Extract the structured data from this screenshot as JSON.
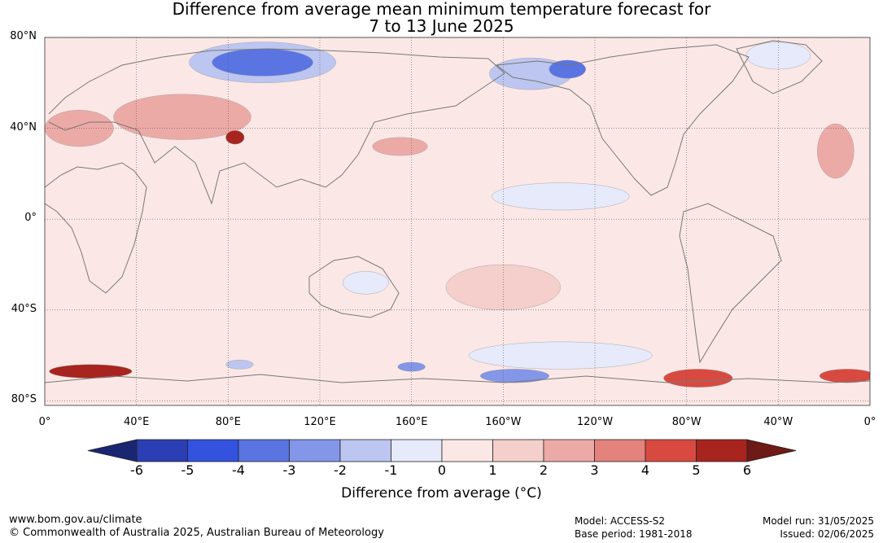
{
  "title": {
    "line1": "Difference from average mean minimum temperature forecast for",
    "line2": "7 to 13 June 2025"
  },
  "axes": {
    "lat_labels": [
      "80°N",
      "40°N",
      "0°",
      "40°S",
      "80°S"
    ],
    "lat_values": [
      80,
      40,
      0,
      -40,
      -80
    ],
    "lon_labels": [
      "0°",
      "40°E",
      "80°E",
      "120°E",
      "160°E",
      "160°W",
      "120°W",
      "80°W",
      "40°W",
      "0°"
    ],
    "lon_values": [
      0,
      40,
      80,
      120,
      160,
      200,
      240,
      280,
      320,
      360
    ],
    "lat_range": [
      -82,
      80
    ],
    "lon_range": [
      0,
      360
    ]
  },
  "colorbar": {
    "label": "Difference from average (°C)",
    "ticks": [
      "-6",
      "-5",
      "-4",
      "-3",
      "-2",
      "-1",
      "0",
      "1",
      "2",
      "3",
      "4",
      "5",
      "6"
    ],
    "tick_values": [
      -6,
      -5,
      -4,
      -3,
      -2,
      -1,
      0,
      1,
      2,
      3,
      4,
      5,
      6
    ],
    "low_extend_color": "#1a2672",
    "high_extend_color": "#6e1a16",
    "colors": [
      "#2a3fb3",
      "#3352e0",
      "#5a74e2",
      "#8396e8",
      "#bcc6f0",
      "#e6eafa",
      "#fbe8e6",
      "#f4cfcc",
      "#ecaaa6",
      "#e4827c",
      "#d84a40",
      "#a8241f"
    ]
  },
  "footer": {
    "url": "www.bom.gov.au/climate",
    "copyright": "© Commonwealth of Australia 2025, Australian Bureau of Meteorology",
    "model": "Model: ACCESS-S2",
    "base_period": "Base period: 1981-2018",
    "model_run": "Model run: 31/05/2025",
    "issued": "Issued: 02/06/2025"
  },
  "map": {
    "background_anomaly_color": "#fbe8e6",
    "anomaly_regions": [
      {
        "name": "siberia-cold",
        "lon": 95,
        "lat": 69,
        "rx": 22,
        "ry": 6,
        "value": -4
      },
      {
        "name": "siberia-cold-outer",
        "lon": 95,
        "lat": 69,
        "rx": 32,
        "ry": 9,
        "value": -2
      },
      {
        "name": "alaska-cold",
        "lon": 212,
        "lat": 64,
        "rx": 18,
        "ry": 7,
        "value": -2
      },
      {
        "name": "yukon-cold",
        "lon": 228,
        "lat": 66,
        "rx": 8,
        "ry": 4,
        "value": -4
      },
      {
        "name": "greenland-cold",
        "lon": 320,
        "lat": 72,
        "rx": 14,
        "ry": 6,
        "value": -1
      },
      {
        "name": "tibet-warm",
        "lon": 83,
        "lat": 36,
        "rx": 4,
        "ry": 3,
        "value": 5
      },
      {
        "name": "central-asia-warm",
        "lon": 60,
        "lat": 45,
        "rx": 30,
        "ry": 10,
        "value": 2
      },
      {
        "name": "mediterranean-warm",
        "lon": 15,
        "lat": 40,
        "rx": 15,
        "ry": 8,
        "value": 2
      },
      {
        "name": "north-atlantic-warm",
        "lon": 345,
        "lat": 30,
        "rx": 8,
        "ry": 12,
        "value": 2
      },
      {
        "name": "pacific-warm",
        "lon": 155,
        "lat": 32,
        "rx": 12,
        "ry": 4,
        "value": 2
      },
      {
        "name": "south-pacific-warm",
        "lon": 200,
        "lat": -30,
        "rx": 25,
        "ry": 10,
        "value": 1
      },
      {
        "name": "antarctic-warm-a",
        "lon": 20,
        "lat": -67,
        "rx": 18,
        "ry": 3,
        "value": 5
      },
      {
        "name": "antarctic-warm-b",
        "lon": 285,
        "lat": -70,
        "rx": 15,
        "ry": 4,
        "value": 4
      },
      {
        "name": "antarctic-warm-c",
        "lon": 350,
        "lat": -69,
        "rx": 12,
        "ry": 3,
        "value": 4
      },
      {
        "name": "antarctic-cold-a",
        "lon": 205,
        "lat": -69,
        "rx": 15,
        "ry": 3,
        "value": -3
      },
      {
        "name": "antarctic-cold-b",
        "lon": 160,
        "lat": -65,
        "rx": 6,
        "ry": 2,
        "value": -3
      },
      {
        "name": "antarctic-cold-c",
        "lon": 85,
        "lat": -64,
        "rx": 6,
        "ry": 2,
        "value": -2
      },
      {
        "name": "southern-ocean-cold",
        "lon": 225,
        "lat": -60,
        "rx": 40,
        "ry": 6,
        "value": -1
      },
      {
        "name": "australia-cold",
        "lon": 140,
        "lat": -28,
        "rx": 10,
        "ry": 5,
        "value": -1
      },
      {
        "name": "eq-pacific-cold",
        "lon": 225,
        "lat": 10,
        "rx": 30,
        "ry": 6,
        "value": -1
      }
    ]
  }
}
